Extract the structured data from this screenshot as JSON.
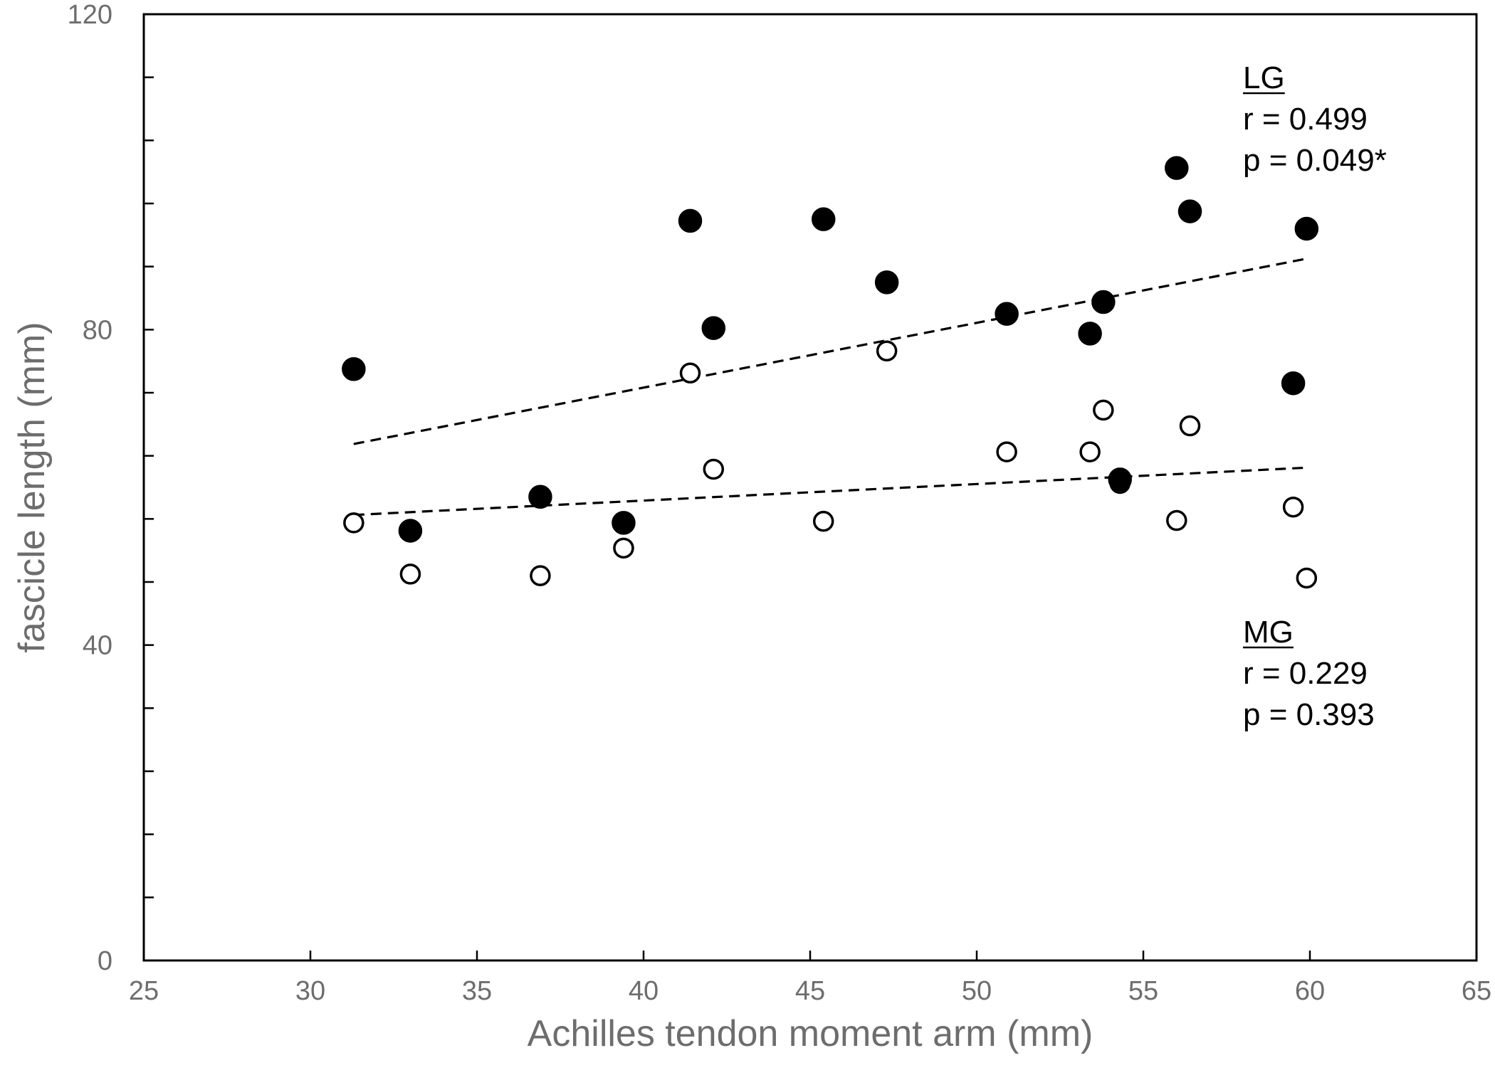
{
  "chart_data": {
    "type": "scatter",
    "xlabel": "Achilles tendon moment arm (mm)",
    "ylabel": "fascicle length (mm)",
    "xlim": [
      25,
      65
    ],
    "ylim": [
      0,
      120
    ],
    "x_ticks": [
      "25",
      "30",
      "35",
      "40",
      "45",
      "50",
      "55",
      "60",
      "65"
    ],
    "y_ticks": [
      "0",
      "40",
      "80",
      "120"
    ],
    "y_minor_step": 8,
    "grid": false,
    "series": [
      {
        "name": "LG",
        "marker": "filled-circle",
        "color": "#000000",
        "points": [
          {
            "x": 31.3,
            "y": 75.0
          },
          {
            "x": 33.0,
            "y": 54.5
          },
          {
            "x": 36.9,
            "y": 58.8
          },
          {
            "x": 39.4,
            "y": 55.5
          },
          {
            "x": 41.4,
            "y": 93.8
          },
          {
            "x": 42.1,
            "y": 80.2
          },
          {
            "x": 45.4,
            "y": 94.0
          },
          {
            "x": 47.3,
            "y": 86.0
          },
          {
            "x": 50.9,
            "y": 82.0
          },
          {
            "x": 53.4,
            "y": 79.5
          },
          {
            "x": 53.8,
            "y": 83.5
          },
          {
            "x": 54.3,
            "y": 61.0
          },
          {
            "x": 56.0,
            "y": 100.5
          },
          {
            "x": 56.4,
            "y": 95.0
          },
          {
            "x": 59.5,
            "y": 73.2
          },
          {
            "x": 59.9,
            "y": 92.8
          }
        ],
        "trendline": {
          "x": [
            31.3,
            59.9
          ],
          "y": [
            65.5,
            89.0
          ]
        }
      },
      {
        "name": "MG",
        "marker": "open-circle",
        "color": "#000000",
        "points": [
          {
            "x": 31.3,
            "y": 55.5
          },
          {
            "x": 33.0,
            "y": 49.0
          },
          {
            "x": 36.9,
            "y": 48.8
          },
          {
            "x": 39.4,
            "y": 52.3
          },
          {
            "x": 41.4,
            "y": 74.5
          },
          {
            "x": 42.1,
            "y": 62.3
          },
          {
            "x": 45.4,
            "y": 55.7
          },
          {
            "x": 47.3,
            "y": 77.3
          },
          {
            "x": 50.9,
            "y": 64.5
          },
          {
            "x": 53.4,
            "y": 64.5
          },
          {
            "x": 53.8,
            "y": 69.8
          },
          {
            "x": 54.3,
            "y": 60.5
          },
          {
            "x": 56.0,
            "y": 55.8
          },
          {
            "x": 56.4,
            "y": 67.8
          },
          {
            "x": 59.5,
            "y": 57.5
          },
          {
            "x": 59.9,
            "y": 48.5
          }
        ],
        "trendline": {
          "x": [
            31.3,
            59.9
          ],
          "y": [
            56.5,
            62.5
          ]
        }
      }
    ],
    "annotations": [
      {
        "group": "LG",
        "title": "LG",
        "r": "r = 0.499",
        "p": "p = 0.049*"
      },
      {
        "group": "MG",
        "title": "MG",
        "r": "r = 0.229",
        "p": "p = 0.393"
      }
    ]
  }
}
